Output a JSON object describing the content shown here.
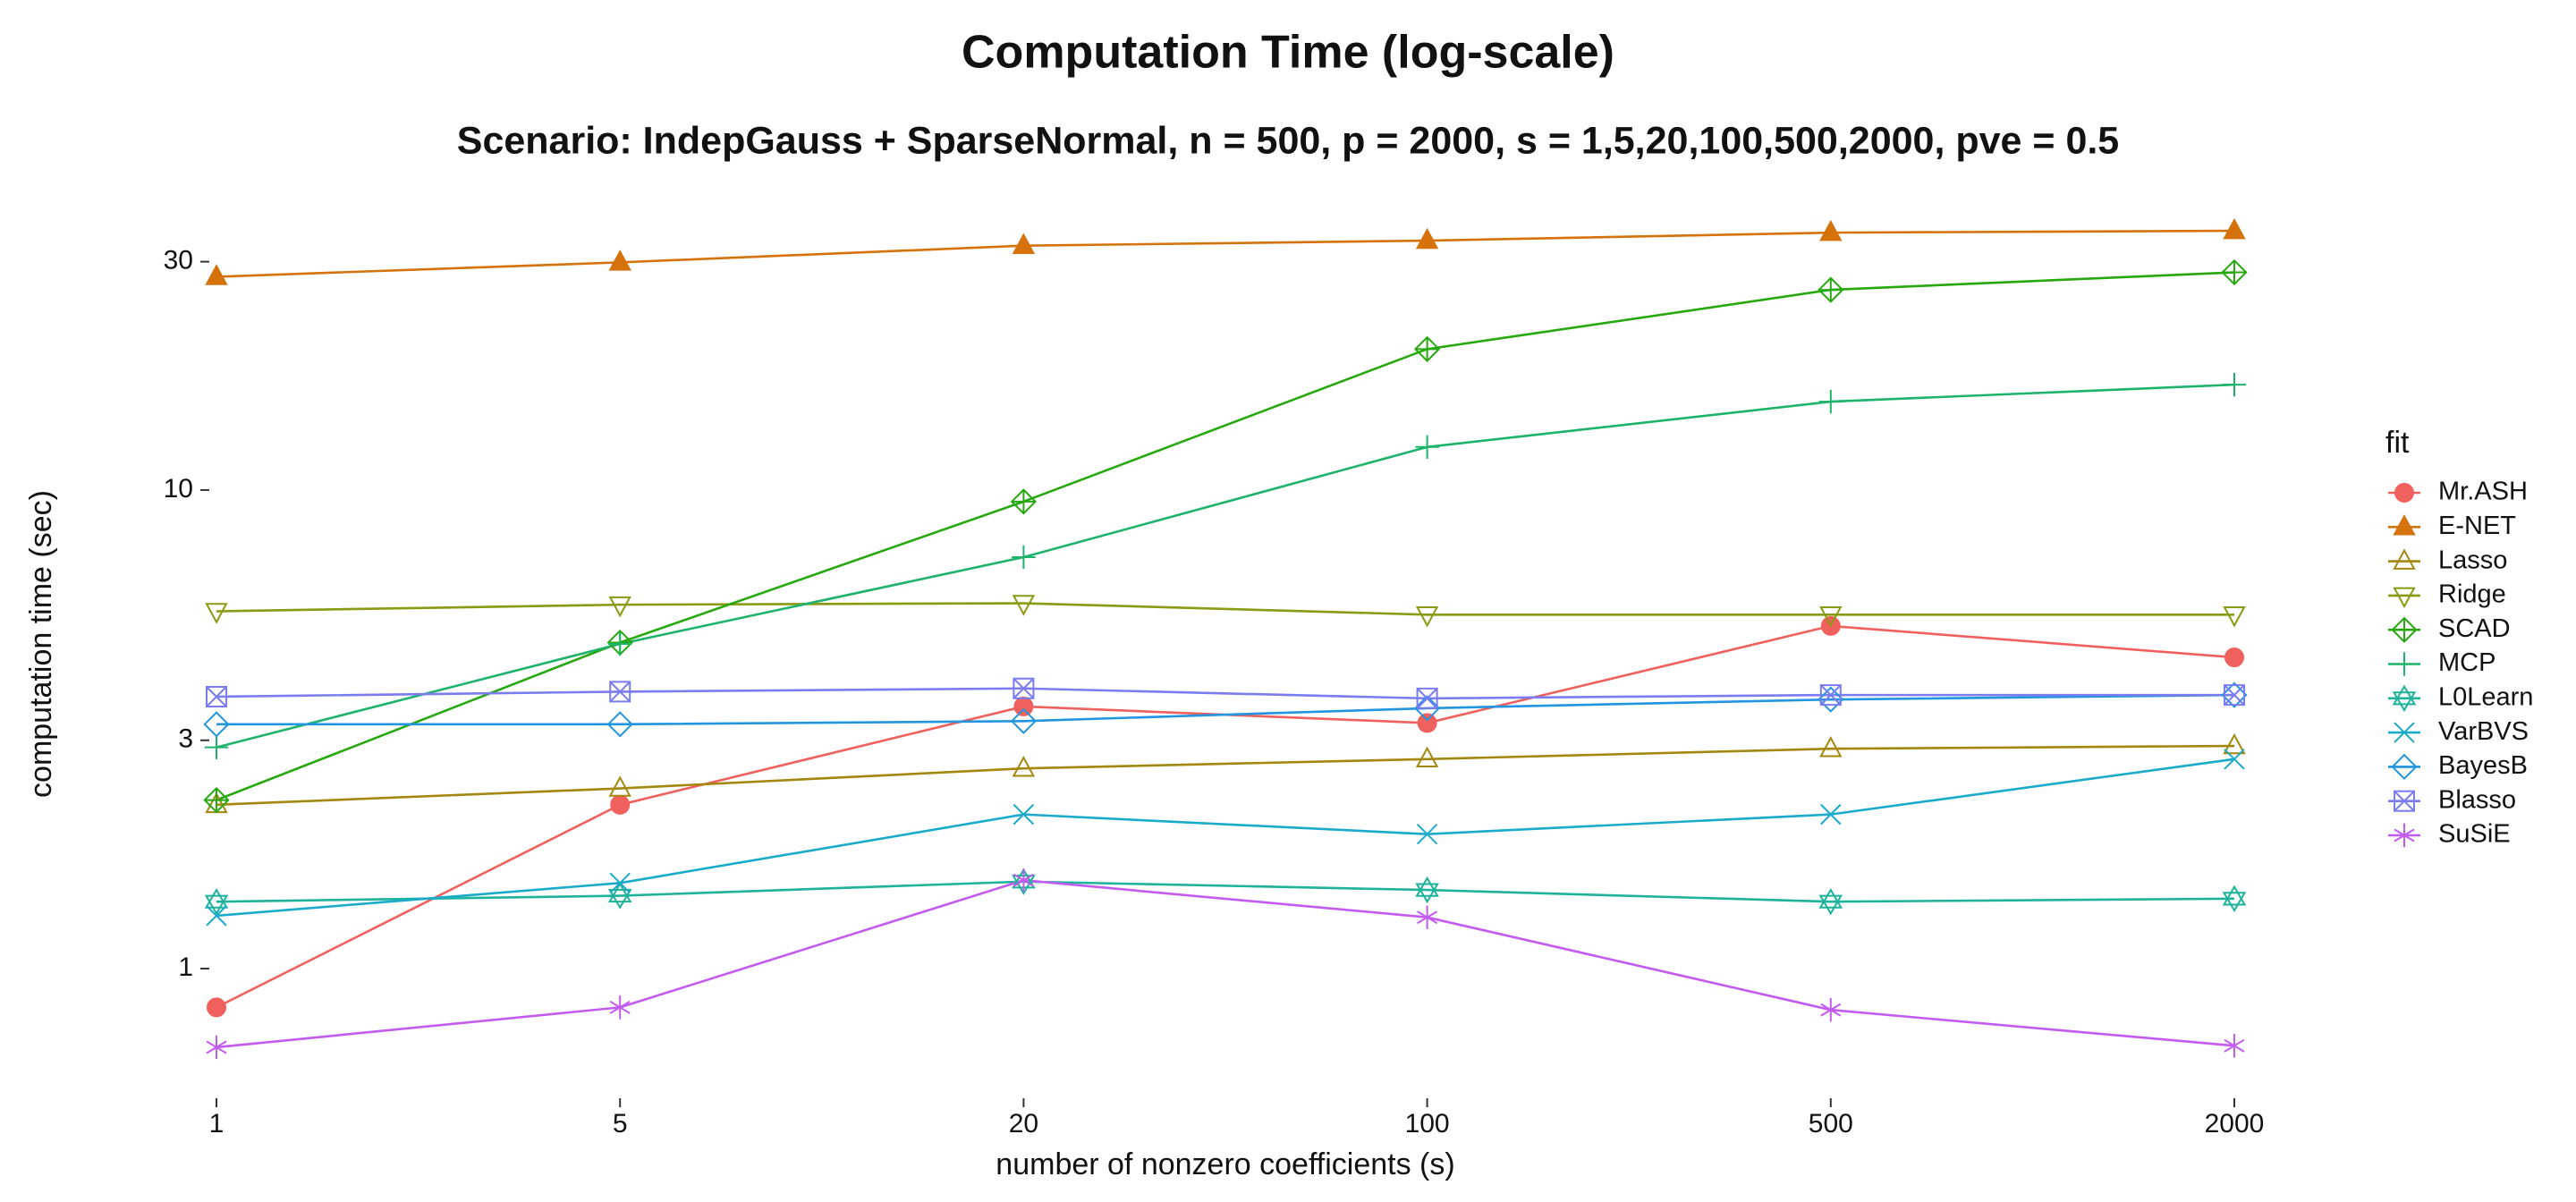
{
  "chart_data": {
    "type": "line",
    "title": "Computation Time (log-scale)",
    "subtitle": "Scenario: IndepGauss + SparseNormal, n = 500, p = 2000, s = 1,5,20,100,500,2000, pve = 0.5",
    "x_label": "number of nonzero coefficients (s)",
    "y_label": "computation time (sec)",
    "legend_title": "fit",
    "legend_position": "right",
    "log_y": true,
    "grid": false,
    "categories": [
      "1",
      "5",
      "20",
      "100",
      "500",
      "2000"
    ],
    "ylim": [
      0.55,
      41
    ],
    "yticks": [
      1,
      3,
      10,
      30
    ],
    "series": [
      {
        "name": "Mr.ASH",
        "color": "#F0605D",
        "marker": "circle-filled",
        "values": [
          0.83,
          2.2,
          3.53,
          3.26,
          5.2,
          4.47
        ]
      },
      {
        "name": "E-NET",
        "color": "#D5720B",
        "marker": "triangle-filled",
        "values": [
          27.9,
          29.9,
          32.4,
          33.2,
          34.5,
          34.8
        ]
      },
      {
        "name": "Lasso",
        "color": "#A3870E",
        "marker": "triangle-open",
        "values": [
          2.2,
          2.38,
          2.62,
          2.74,
          2.88,
          2.92
        ]
      },
      {
        "name": "Ridge",
        "color": "#8A9A12",
        "marker": "triangle-down-open",
        "values": [
          5.58,
          5.76,
          5.8,
          5.49,
          5.49,
          5.49
        ]
      },
      {
        "name": "SCAD",
        "color": "#27A80E",
        "marker": "diamond-plus",
        "values": [
          2.25,
          4.8,
          9.46,
          19.7,
          26.2,
          28.5
        ]
      },
      {
        "name": "MCP",
        "color": "#1DB36A",
        "marker": "plus",
        "values": [
          2.9,
          4.77,
          7.24,
          12.3,
          15.3,
          16.6
        ]
      },
      {
        "name": "L0Learn",
        "color": "#1DB39A",
        "marker": "star-david",
        "values": [
          1.38,
          1.42,
          1.52,
          1.46,
          1.38,
          1.4
        ]
      },
      {
        "name": "VarBVS",
        "color": "#1AABCB",
        "marker": "cross",
        "values": [
          1.29,
          1.51,
          2.1,
          1.91,
          2.1,
          2.74
        ]
      },
      {
        "name": "BayesB",
        "color": "#2195E0",
        "marker": "diamond-open",
        "values": [
          3.24,
          3.24,
          3.29,
          3.5,
          3.65,
          3.73
        ]
      },
      {
        "name": "Blasso",
        "color": "#7A7CF0",
        "marker": "square-cross",
        "values": [
          3.7,
          3.79,
          3.85,
          3.67,
          3.73,
          3.73
        ]
      },
      {
        "name": "SuSiE",
        "color": "#C35BF0",
        "marker": "asterisk",
        "values": [
          0.685,
          0.83,
          1.53,
          1.28,
          0.82,
          0.69
        ]
      }
    ]
  }
}
